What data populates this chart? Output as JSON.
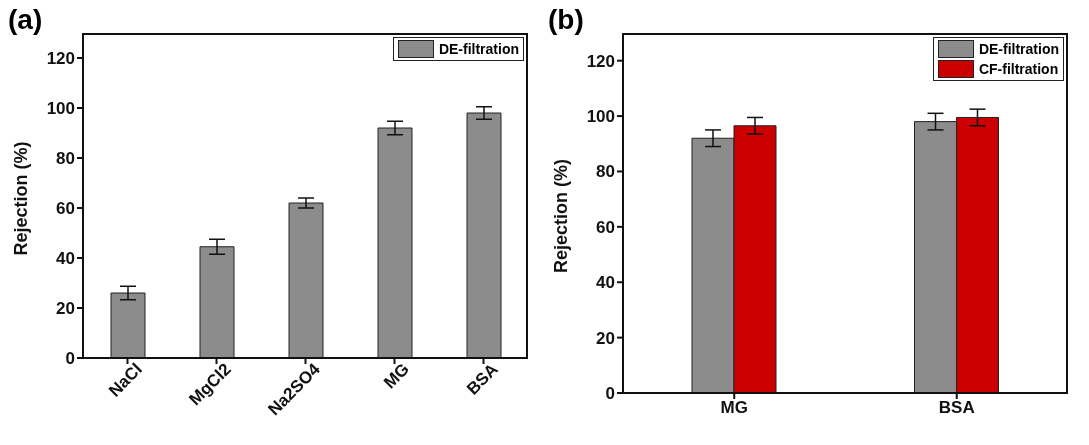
{
  "chart_data": [
    {
      "type": "bar",
      "title": "(a)",
      "ylabel": "Rejection (%)",
      "categories": [
        "NaCl",
        "MgCl2",
        "Na2SO4",
        "MG",
        "BSA"
      ],
      "series": [
        {
          "name": "DE-filtration",
          "color": "#8c8c8c",
          "values": [
            26,
            44.5,
            62,
            92,
            98
          ],
          "errors": [
            2.7,
            3,
            2,
            2.7,
            2.5
          ]
        }
      ],
      "ylim": [
        0,
        130
      ],
      "yticks": [
        0,
        20,
        40,
        60,
        80,
        100,
        120
      ],
      "grid": false,
      "legend": "top right"
    },
    {
      "type": "bar",
      "title": "(b)",
      "ylabel": "Rejection (%)",
      "categories": [
        "MG",
        "BSA"
      ],
      "series": [
        {
          "name": "DE-filtration",
          "color": "#8c8c8c",
          "values": [
            92,
            98
          ],
          "errors": [
            3,
            3
          ]
        },
        {
          "name": "CF-filtration",
          "color": "#cc0000",
          "values": [
            96.5,
            99.5
          ],
          "errors": [
            3,
            3
          ]
        }
      ],
      "ylim": [
        0,
        130
      ],
      "yticks": [
        0,
        20,
        40,
        60,
        80,
        100,
        120
      ],
      "grid": false,
      "legend": "top right"
    }
  ]
}
